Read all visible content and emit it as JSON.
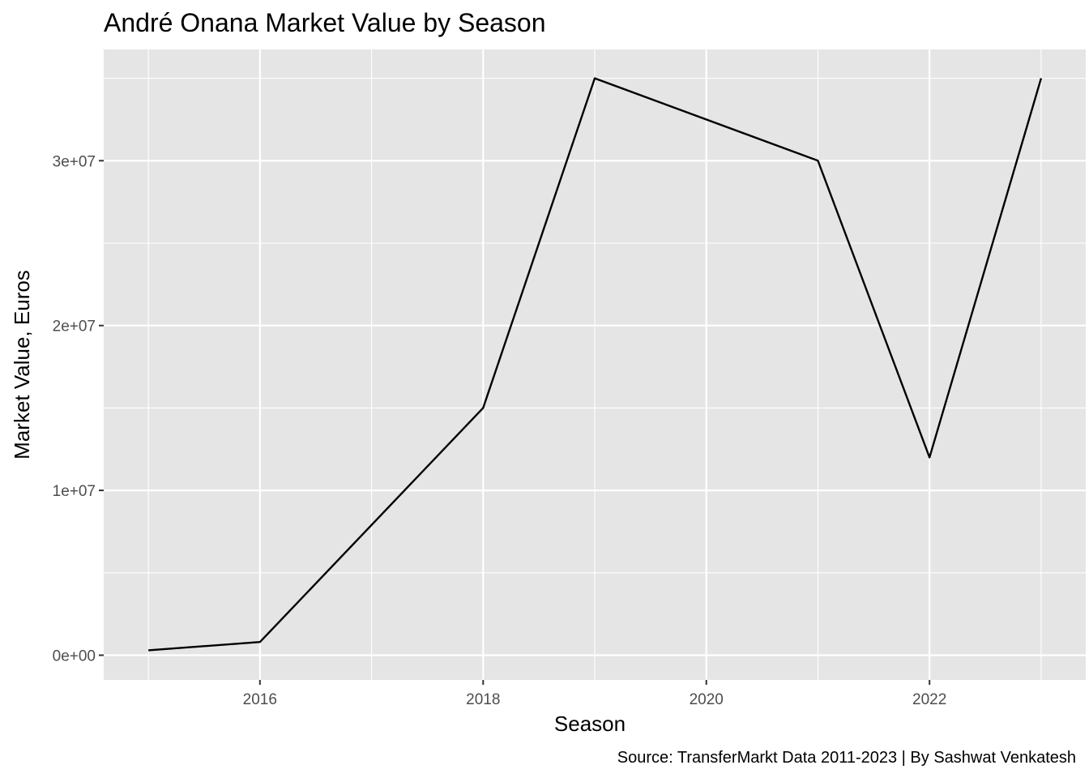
{
  "chart_data": {
    "type": "line",
    "title": "André Onana Market Value by Season",
    "xlabel": "Season",
    "ylabel": "Market Value, Euros",
    "caption": "Source: TransferMarkt Data 2011-2023 | By Sashwat Venkatesh",
    "x": [
      2015,
      2016,
      2018,
      2019,
      2021,
      2022,
      2023
    ],
    "series": [
      {
        "values": [
          300000,
          800000,
          15000000,
          35000000,
          30000000,
          12000000,
          35000000
        ]
      }
    ],
    "xlim": [
      2014.6,
      2023.4
    ],
    "ylim": [
      -1500000,
      36750000
    ],
    "x_ticks": [
      2016,
      2018,
      2020,
      2022
    ],
    "x_tick_labels": [
      "2016",
      "2018",
      "2020",
      "2022"
    ],
    "y_ticks": [
      0,
      10000000,
      20000000,
      30000000
    ],
    "y_tick_labels": [
      "0e+00",
      "1e+07",
      "2e+07",
      "3e+07"
    ],
    "grid": true,
    "panel_background": "#e5e5e5",
    "grid_color": "#ffffff",
    "line_color": "#000000"
  }
}
